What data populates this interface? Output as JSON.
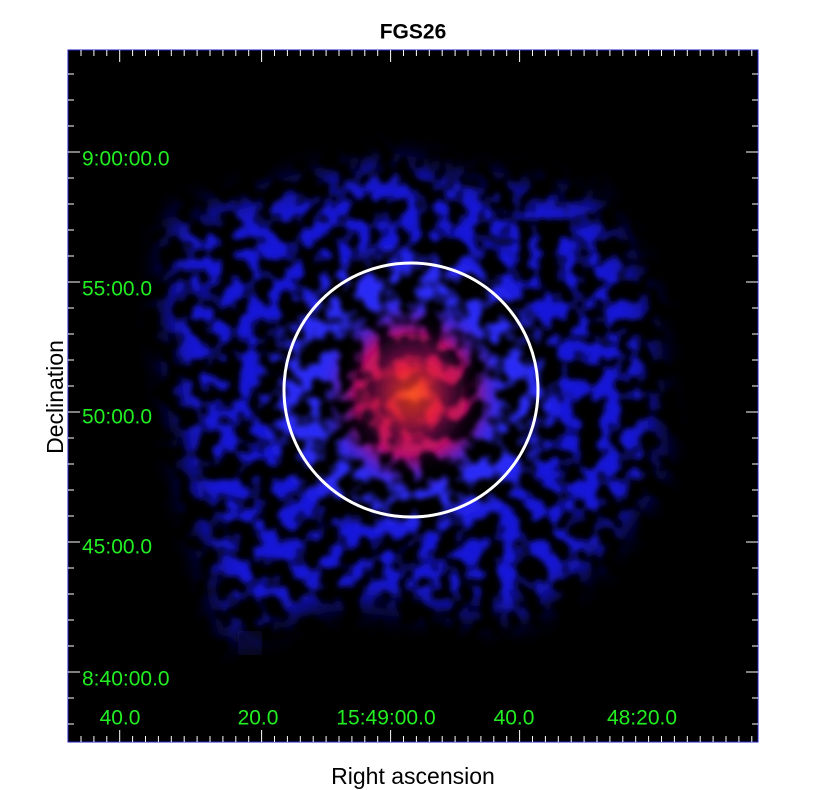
{
  "image": {
    "title": "FGS26",
    "x_label": "Right ascension",
    "y_label": "Declination",
    "x_tick_labels": [
      "40.0",
      "20.0",
      "15:49:00.0",
      "40.0",
      "48:20.0"
    ],
    "y_tick_labels": [
      "9:00:00.0",
      "55:00.0",
      "50:00.0",
      "45:00.0",
      "8:40:00.0"
    ]
  }
}
